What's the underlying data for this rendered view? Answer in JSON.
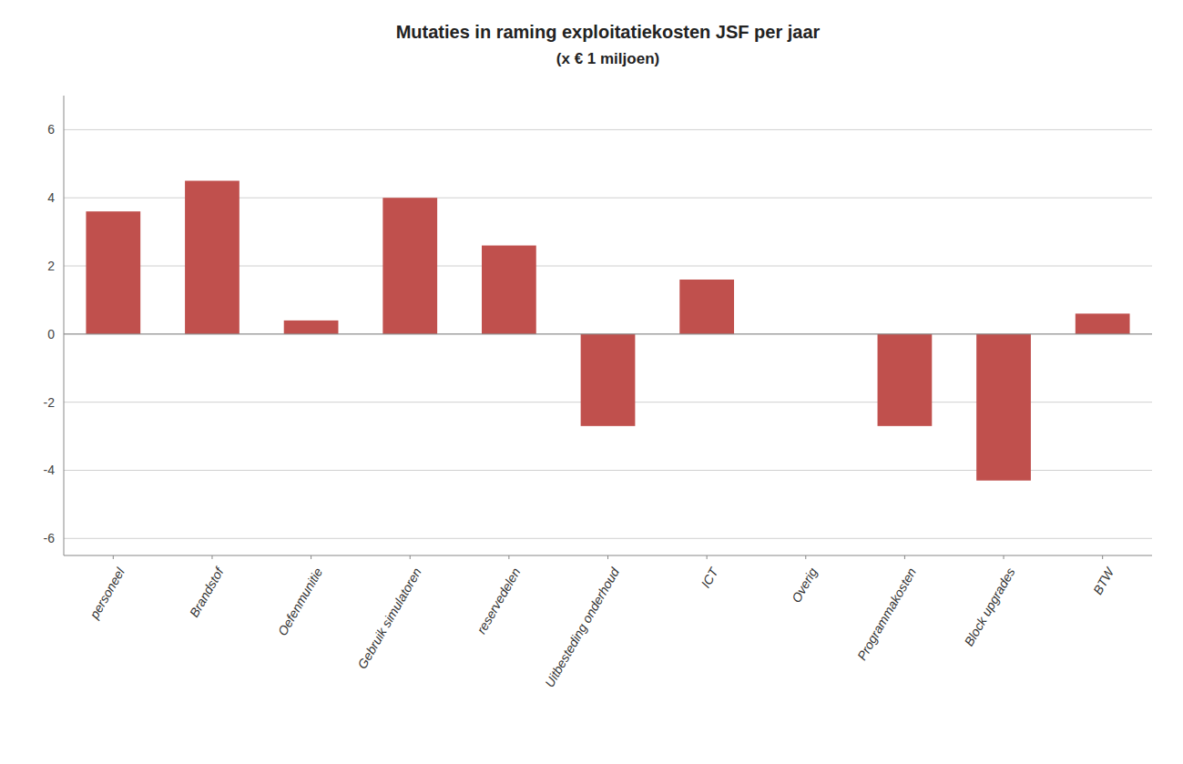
{
  "chart_data": {
    "type": "bar",
    "title": "Mutaties in raming exploitatiekosten JSF per jaar",
    "subtitle": "(x € 1 miljoen)",
    "categories": [
      "personeel",
      "Brandstof",
      "Oefenmunitie",
      "Gebruik simulatoren",
      "reservedelen",
      "Uitbesteding onderhoud",
      "ICT",
      "Overig",
      "Programmakosten",
      "Block upgrades",
      "BTW"
    ],
    "values": [
      3.6,
      4.5,
      0.4,
      4.0,
      2.6,
      -2.7,
      1.6,
      0.0,
      -2.7,
      -4.3,
      0.6
    ],
    "color": "#c0504d",
    "ylim": [
      -6.5,
      7.0
    ],
    "yticks": [
      -6,
      -4,
      -2,
      0,
      2,
      4,
      6
    ],
    "grid": true
  }
}
